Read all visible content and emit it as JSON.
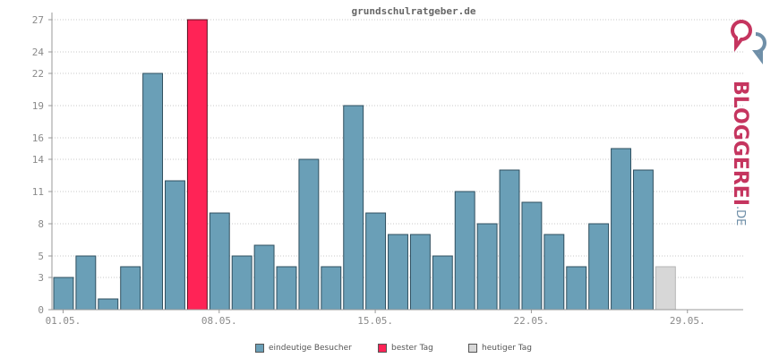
{
  "chart_data": {
    "type": "bar",
    "title": "grundschulratgeber.de",
    "ylim": [
      0,
      27
    ],
    "yticks": [
      0,
      3,
      5,
      8,
      11,
      14,
      16,
      19,
      22,
      24,
      27
    ],
    "xtick_labels": [
      "01.05.",
      "08.05.",
      "15.05.",
      "22.05.",
      "29.05."
    ],
    "xtick_days": [
      1,
      8,
      15,
      22,
      29
    ],
    "days": 31,
    "grid": true,
    "legend_position": "bottom",
    "series": [
      {
        "name": "eindeutige Besucher",
        "values": [
          3,
          5,
          1,
          4,
          22,
          12,
          27,
          9,
          5,
          6,
          4,
          14,
          4,
          19,
          9,
          7,
          7,
          5,
          11,
          8,
          13,
          10,
          7,
          4,
          8,
          15,
          13,
          4
        ]
      }
    ],
    "best_day_index": 6,
    "today_index": 27
  },
  "legend": [
    {
      "label": "eindeutige Besucher",
      "color": "#6a9fb7"
    },
    {
      "label": "bester Tag",
      "color": "#ff2356"
    },
    {
      "label": "heutiger Tag",
      "color": "#d7d7d7"
    }
  ],
  "colors": {
    "bar": "#6a9fb7",
    "best": "#ff2356",
    "today": "#d7d7d7",
    "axis": "#999999",
    "grid": "#c8c8c8"
  },
  "brand": {
    "name": "BLOGGEREI",
    "suffix": ".DE",
    "icon": "bloggerei-logo-icon"
  }
}
